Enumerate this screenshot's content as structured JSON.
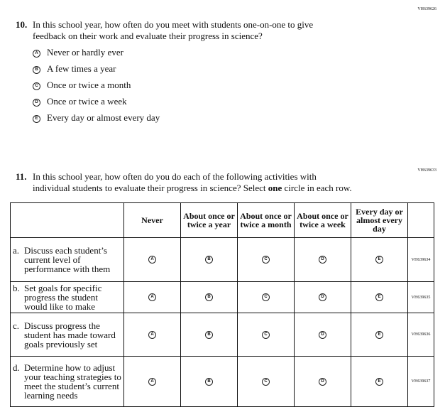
{
  "q10": {
    "id": "VH639626",
    "number": "10.",
    "line1": "In this school year, how often do you meet with students one-on-one to give",
    "line2": "feedback on their work and evaluate their progress in science?",
    "options": [
      {
        "letter": "A",
        "label": "Never or hardly ever"
      },
      {
        "letter": "B",
        "label": "A few times a year"
      },
      {
        "letter": "C",
        "label": "Once or twice a month"
      },
      {
        "letter": "D",
        "label": "Once or twice a week"
      },
      {
        "letter": "E",
        "label": "Every day or almost every day"
      }
    ]
  },
  "q11": {
    "id": "VH639633",
    "number": "11.",
    "line1": "In this school year, how often do you do each of the following activities with",
    "line2_pre": "individual students to evaluate their progress in science? Select ",
    "line2_bold": "one",
    "line2_post": " circle in each row.",
    "columns": [
      "Never",
      "About once or twice a year",
      "About once or twice a month",
      "About once or twice a week",
      "Every day or almost every day"
    ],
    "letters": [
      "A",
      "B",
      "C",
      "D",
      "E"
    ],
    "rows": [
      {
        "letter": "a.",
        "label": "Discuss each student’s current level of performance with them",
        "id": "VH639634"
      },
      {
        "letter": "b.",
        "label": "Set goals for specific progress the student would like to make",
        "id": "VH639635"
      },
      {
        "letter": "c.",
        "label": "Discuss progress the student has made toward goals previously set",
        "id": "VH639636"
      },
      {
        "letter": "d.",
        "label": "Determine how to adjust your teaching strategies to meet the student’s current learning needs",
        "id": "VH639637"
      }
    ]
  }
}
